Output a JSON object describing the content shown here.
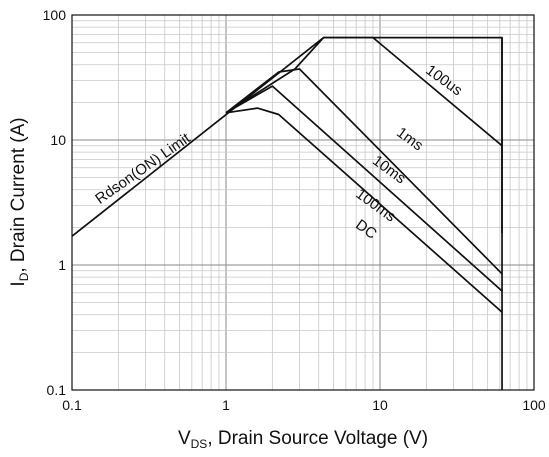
{
  "chart_data": {
    "type": "line",
    "xscale": "log",
    "yscale": "log",
    "xlim": [
      0.1,
      100
    ],
    "ylim": [
      0.1,
      100
    ],
    "grid": true,
    "xlabel": {
      "main": "V",
      "sub": "DS",
      "rest": ", Drain Source Voltage (V)"
    },
    "ylabel": {
      "main": "I",
      "sub": "D",
      "rest": ", Drain Current (A)"
    },
    "xticks": [
      {
        "value": 0.1,
        "label": "0.1"
      },
      {
        "value": 1,
        "label": "1"
      },
      {
        "value": 10,
        "label": "10"
      },
      {
        "value": 100,
        "label": "100"
      }
    ],
    "yticks": [
      {
        "value": 0.1,
        "label": "0.1"
      },
      {
        "value": 1,
        "label": "1"
      },
      {
        "value": 10,
        "label": "10"
      },
      {
        "value": 100,
        "label": "100"
      }
    ],
    "series": [
      {
        "name": "Rdson(ON) Limit",
        "label_pos": [
          0.3,
          5.5
        ],
        "label_angle": -35,
        "points": [
          [
            0.1,
            1.7
          ],
          [
            4.3,
            66
          ]
        ]
      },
      {
        "name": "100us",
        "label_pos": [
          25,
          28
        ],
        "label_angle": 36,
        "points": [
          [
            4.3,
            66
          ],
          [
            9,
            66
          ],
          [
            62,
            9
          ]
        ]
      },
      {
        "name": "1ms",
        "label_pos": [
          15,
          9.5
        ],
        "label_angle": 36,
        "points": [
          [
            1,
            16.5
          ],
          [
            2.8,
            37
          ],
          [
            4.3,
            66
          ],
          [
            62,
            66
          ],
          [
            62,
            1.8
          ]
        ]
      },
      {
        "name": "10ms",
        "label_pos": [
          11,
          5.4
        ],
        "label_angle": 36,
        "points": [
          [
            1,
            16.5
          ],
          [
            2.2,
            35
          ],
          [
            3,
            37
          ],
          [
            62,
            0.85
          ]
        ]
      },
      {
        "name": "100ms",
        "label_pos": [
          9,
          2.8
        ],
        "label_angle": 36,
        "points": [
          [
            1,
            16.5
          ],
          [
            2,
            27
          ],
          [
            62,
            0.62
          ]
        ]
      },
      {
        "name": "DC",
        "label_pos": [
          7.8,
          1.8
        ],
        "label_angle": 36,
        "points": [
          [
            1,
            16.5
          ],
          [
            1.6,
            18
          ],
          [
            2.2,
            16
          ],
          [
            62,
            0.42
          ]
        ]
      }
    ],
    "vertical_limit": {
      "x": 62,
      "y_from": 0.1,
      "y_to": 66
    }
  }
}
